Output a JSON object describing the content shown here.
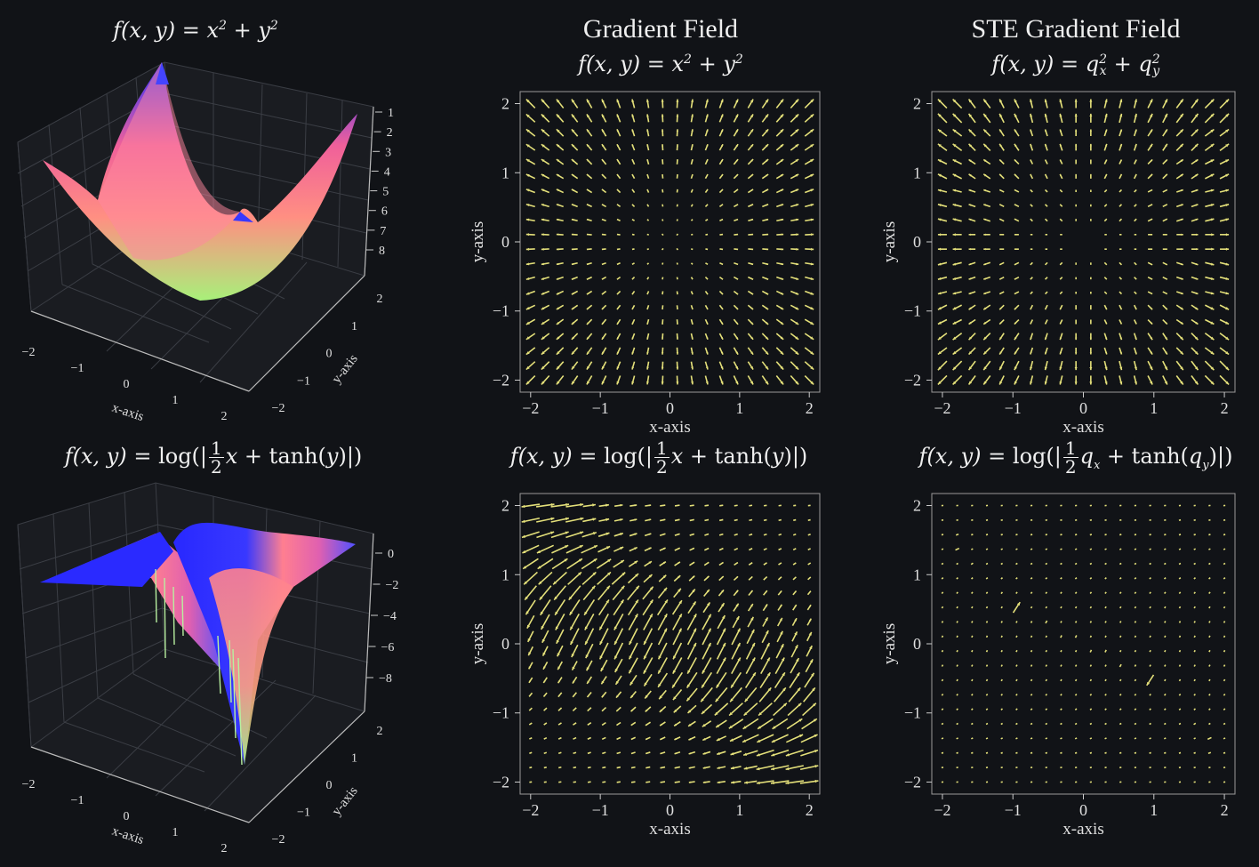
{
  "chart_data": [
    {
      "id": "surf-quad",
      "type": "surface3d",
      "function": "x^2 + y^2",
      "title_parts": {
        "lhs": "f(x, y)",
        "eq": "=",
        "a": "x",
        "a_sup": "2",
        "plus": "+",
        "b": "y",
        "b_sup": "2"
      },
      "xlabel": "x-axis",
      "ylabel": "y-axis",
      "x_ticks": [
        "−2",
        "−1",
        "0",
        "1",
        "2"
      ],
      "y_ticks": [
        "−2",
        "−1",
        "0",
        "1",
        "2"
      ],
      "z_ticks": [
        "1",
        "2",
        "3",
        "4",
        "5",
        "6",
        "7",
        "8"
      ],
      "xlim": [
        -2,
        2
      ],
      "ylim": [
        -2,
        2
      ],
      "zlim": [
        0,
        8
      ],
      "colormap": [
        "#a8f07a",
        "#ff8a80",
        "#f0609a",
        "#2a2aff"
      ]
    },
    {
      "id": "field-quad",
      "type": "quiver",
      "title": "Gradient Field",
      "subtitle_parts": {
        "lhs": "f(x, y)",
        "eq": "=",
        "a": "x",
        "a_sup": "2",
        "plus": "+",
        "b": "y",
        "b_sup": "2"
      },
      "function": "grad(x^2 + y^2)",
      "xlabel": "x-axis",
      "ylabel": "y-axis",
      "xlim": [
        -2,
        2
      ],
      "ylim": [
        -2,
        2
      ],
      "x_ticks": [
        "−2",
        "−1",
        "0",
        "1",
        "2"
      ],
      "y_ticks": [
        "−2",
        "−1",
        "0",
        "1",
        "2"
      ],
      "grid_n": 20,
      "arrow_color": "#e4e07a"
    },
    {
      "id": "field-quad-ste",
      "type": "quiver",
      "title": "STE Gradient Field",
      "subtitle_parts": {
        "lhs": "f(x, y)",
        "eq": "=",
        "a": "q",
        "a_sub": "x",
        "a_sup": "2",
        "plus": "+",
        "b": "q",
        "b_sub": "y",
        "b_sup": "2"
      },
      "function": "ste-grad(qx^2 + qy^2)",
      "xlabel": "x-axis",
      "ylabel": "y-axis",
      "xlim": [
        -2,
        2
      ],
      "ylim": [
        -2,
        2
      ],
      "x_ticks": [
        "−2",
        "−1",
        "0",
        "1",
        "2"
      ],
      "y_ticks": [
        "−2",
        "−1",
        "0",
        "1",
        "2"
      ],
      "grid_n": 20,
      "arrow_color": "#e4e07a"
    },
    {
      "id": "surf-log",
      "type": "surface3d",
      "function": "log(|x/2 + tanh(y)|)",
      "title_parts": {
        "lhs": "f(x, y)",
        "eq": "=",
        "fn": "log(|",
        "num": "1",
        "den": "2",
        "var": "x",
        "plus": "+",
        "tanh": "tanh(",
        "targ": "y",
        "close": ")|)"
      },
      "xlabel": "x-axis",
      "ylabel": "y-axis",
      "x_ticks": [
        "−2",
        "−1",
        "0",
        "1",
        "2"
      ],
      "y_ticks": [
        "−2",
        "−1",
        "0",
        "1",
        "2"
      ],
      "z_ticks": [
        "0",
        "−2",
        "−4",
        "−6",
        "−8"
      ],
      "xlim": [
        -2,
        2
      ],
      "ylim": [
        -2,
        2
      ],
      "zlim": [
        -9,
        1
      ],
      "colormap": [
        "#a8f07a",
        "#ff8a80",
        "#f0609a",
        "#2a2aff"
      ]
    },
    {
      "id": "field-log",
      "type": "quiver",
      "title_parts": {
        "lhs": "f(x, y)",
        "eq": "=",
        "fn": "log(|",
        "num": "1",
        "den": "2",
        "var": "x",
        "plus": "+",
        "tanh": "tanh(",
        "targ": "y",
        "close": ")|)"
      },
      "function": "grad(log(|x/2 + tanh(y)|))",
      "xlabel": "x-axis",
      "ylabel": "y-axis",
      "xlim": [
        -2,
        2
      ],
      "ylim": [
        -2,
        2
      ],
      "x_ticks": [
        "−2",
        "−1",
        "0",
        "1",
        "2"
      ],
      "y_ticks": [
        "−2",
        "−1",
        "0",
        "1",
        "2"
      ],
      "grid_n": 20,
      "arrow_color": "#e4e07a"
    },
    {
      "id": "field-log-ste",
      "type": "quiver",
      "title_parts": {
        "lhs": "f(x, y)",
        "eq": "=",
        "fn": "log(|",
        "num": "1",
        "den": "2",
        "var": "q",
        "var_sub": "x",
        "plus": "+",
        "tanh": "tanh(",
        "targ": "q",
        "targ_sub": "y",
        "close": ")|)"
      },
      "function": "ste-grad(log(|qx/2 + tanh(qy)|))",
      "xlabel": "x-axis",
      "ylabel": "y-axis",
      "xlim": [
        -2,
        2
      ],
      "ylim": [
        -2,
        2
      ],
      "x_ticks": [
        "−2",
        "−1",
        "0",
        "1",
        "2"
      ],
      "y_ticks": [
        "−2",
        "−1",
        "0",
        "1",
        "2"
      ],
      "grid_n": 20,
      "arrow_color": "#e4e07a"
    }
  ]
}
